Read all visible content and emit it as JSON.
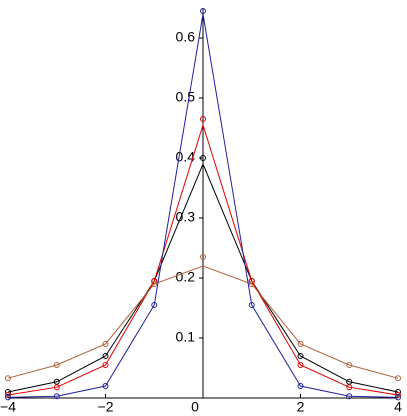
{
  "chart_data": {
    "type": "line",
    "x": [
      -4,
      -3,
      -2,
      -1,
      0,
      1,
      2,
      3,
      4
    ],
    "series": [
      {
        "color": "#000000",
        "values": [
          0.01,
          0.027,
          0.07,
          0.195,
          0.39,
          0.195,
          0.07,
          0.027,
          0.01
        ],
        "point_values": [
          0.01,
          0.027,
          0.07,
          0.195,
          0.4,
          0.195,
          0.07,
          0.027,
          0.01
        ]
      },
      {
        "color": "#e00000",
        "values": [
          0.005,
          0.018,
          0.055,
          0.195,
          0.455,
          0.195,
          0.055,
          0.018,
          0.005
        ],
        "point_values": [
          0.005,
          0.018,
          0.055,
          0.195,
          0.465,
          0.195,
          0.055,
          0.018,
          0.005
        ]
      },
      {
        "color": "#b0603a",
        "values": [
          0.033,
          0.055,
          0.09,
          0.19,
          0.22,
          0.19,
          0.09,
          0.055,
          0.033
        ],
        "point_values": [
          0.033,
          0.055,
          0.09,
          0.19,
          0.235,
          0.19,
          0.09,
          0.055,
          0.033
        ]
      },
      {
        "color": "#2020a0",
        "values": [
          0.001,
          0.003,
          0.02,
          0.155,
          0.64,
          0.155,
          0.02,
          0.003,
          0.001
        ],
        "point_values": [
          0.001,
          0.003,
          0.02,
          0.155,
          0.645,
          0.155,
          0.02,
          0.003,
          0.001
        ]
      }
    ],
    "xlim": [
      -4,
      4
    ],
    "ylim": [
      0,
      0.65
    ],
    "xticks": [
      {
        "value": -4,
        "label": "−4"
      },
      {
        "value": -2,
        "label": "−2"
      },
      0,
      2,
      4
    ],
    "yticks": [
      0.1,
      0.2,
      0.3,
      0.4,
      0.5,
      0.6
    ]
  }
}
